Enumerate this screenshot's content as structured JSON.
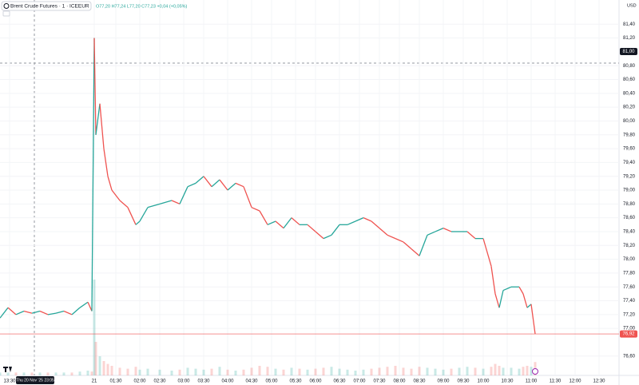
{
  "chart_data": {
    "type": "line",
    "title": "Brent Crude Futures · 1 · ICEEUR",
    "ohlc": "O77,20 H77,24 L77,20 C77,23 +0,04 (+0,05%)",
    "currency": "USD",
    "crosshair_price": "81,00",
    "crosshair_time": "Thu 20 Nov '25 23:05",
    "last_price": 76.92,
    "last_price_label": "76,92",
    "up_color": "#26a69a",
    "down_color": "#ef5350",
    "grid": true,
    "x": [
      0,
      2,
      4,
      6,
      8,
      10,
      12,
      14,
      16,
      18,
      20,
      22,
      23,
      23.6,
      24,
      25,
      26,
      27,
      28,
      30,
      32,
      34,
      35,
      37,
      40,
      43,
      45,
      47,
      49,
      51,
      53,
      55,
      57,
      59,
      61,
      63,
      65,
      67,
      69,
      71,
      73,
      75,
      77,
      79,
      81,
      83,
      85,
      87,
      89,
      91,
      93,
      95,
      97,
      99,
      101,
      103,
      105,
      107,
      109,
      111,
      113,
      115,
      117,
      119,
      121,
      123,
      124,
      125,
      126,
      128,
      130,
      131,
      132,
      133,
      134
    ],
    "values": [
      77.15,
      77.3,
      77.2,
      77.25,
      77.22,
      77.25,
      77.2,
      77.22,
      77.25,
      77.2,
      77.3,
      77.38,
      77.25,
      81.2,
      79.8,
      80.25,
      79.6,
      79.2,
      79.0,
      78.85,
      78.75,
      78.5,
      78.55,
      78.75,
      78.8,
      78.85,
      78.8,
      79.05,
      79.1,
      79.2,
      79.05,
      79.15,
      79.0,
      79.1,
      79.05,
      78.75,
      78.7,
      78.5,
      78.55,
      78.45,
      78.6,
      78.5,
      78.5,
      78.4,
      78.3,
      78.35,
      78.5,
      78.5,
      78.55,
      78.6,
      78.55,
      78.45,
      78.35,
      78.3,
      78.25,
      78.15,
      78.05,
      78.35,
      78.4,
      78.45,
      78.4,
      78.4,
      78.4,
      78.3,
      78.3,
      77.9,
      77.5,
      77.3,
      77.55,
      77.6,
      77.6,
      77.5,
      77.3,
      77.35,
      76.92
    ],
    "volume": [
      3,
      3,
      3,
      3,
      3,
      3,
      3,
      3,
      3,
      3,
      4,
      5,
      4,
      100,
      35,
      20,
      15,
      12,
      10,
      8,
      7,
      9,
      6,
      7,
      6,
      5,
      6,
      8,
      7,
      6,
      7,
      9,
      6,
      5,
      6,
      8,
      10,
      9,
      7,
      6,
      8,
      7,
      6,
      7,
      8,
      9,
      7,
      6,
      5,
      6,
      7,
      8,
      9,
      10,
      8,
      7,
      9,
      8,
      7,
      6,
      7,
      8,
      9,
      8,
      7,
      9,
      12,
      10,
      8,
      8,
      7,
      9,
      10,
      9,
      14
    ],
    "vlim": [
      0,
      100
    ],
    "xlim": [
      0,
      155
    ],
    "ylim": [
      76.32,
      81.75
    ],
    "xticks": [
      {
        "value": 2.4,
        "label": "13:30"
      },
      {
        "value": 23.6,
        "label": "21"
      },
      {
        "value": 29,
        "label": "01:30"
      },
      {
        "value": 35,
        "label": "02:00"
      },
      {
        "value": 40,
        "label": "02:30"
      },
      {
        "value": 46,
        "label": "03:00"
      },
      {
        "value": 51,
        "label": "03:30"
      },
      {
        "value": 57,
        "label": "04:00"
      },
      {
        "value": 63,
        "label": "04:30"
      },
      {
        "value": 68,
        "label": "05:00"
      },
      {
        "value": 74,
        "label": "05:30"
      },
      {
        "value": 79,
        "label": "06:00"
      },
      {
        "value": 85,
        "label": "06:30"
      },
      {
        "value": 90,
        "label": "07:00"
      },
      {
        "value": 95,
        "label": "07:30"
      },
      {
        "value": 100,
        "label": "08:00"
      },
      {
        "value": 105,
        "label": "08:30"
      },
      {
        "value": 111,
        "label": "09:00"
      },
      {
        "value": 116,
        "label": "09:30"
      },
      {
        "value": 121,
        "label": "10:00"
      },
      {
        "value": 127,
        "label": "10:30"
      },
      {
        "value": 133,
        "label": "11:00"
      },
      {
        "value": 139,
        "label": "11:30"
      },
      {
        "value": 144,
        "label": "12:00"
      },
      {
        "value": 150,
        "label": "12:30"
      }
    ],
    "yticks": [
      {
        "value": 81.4,
        "label": "81,40"
      },
      {
        "value": 81.2,
        "label": "81,20"
      },
      {
        "value": 80.8,
        "label": "80,80"
      },
      {
        "value": 80.6,
        "label": "80,60"
      },
      {
        "value": 80.4,
        "label": "80,40"
      },
      {
        "value": 80.2,
        "label": "80,20"
      },
      {
        "value": 80,
        "label": "80,00"
      },
      {
        "value": 79.8,
        "label": "79,80"
      },
      {
        "value": 79.6,
        "label": "79,60"
      },
      {
        "value": 79.4,
        "label": "79,40"
      },
      {
        "value": 79.2,
        "label": "79,20"
      },
      {
        "value": 79,
        "label": "79,00"
      },
      {
        "value": 78.8,
        "label": "78,80"
      },
      {
        "value": 78.6,
        "label": "78,60"
      },
      {
        "value": 78.4,
        "label": "78,40"
      },
      {
        "value": 78.2,
        "label": "78,20"
      },
      {
        "value": 78,
        "label": "78,00"
      },
      {
        "value": 77.8,
        "label": "77,80"
      },
      {
        "value": 77.6,
        "label": "77,60"
      },
      {
        "value": 77.4,
        "label": "77,40"
      },
      {
        "value": 77.2,
        "label": "77,20"
      },
      {
        "value": 77,
        "label": "77,00"
      },
      {
        "value": 76.6,
        "label": "76,60"
      }
    ]
  }
}
